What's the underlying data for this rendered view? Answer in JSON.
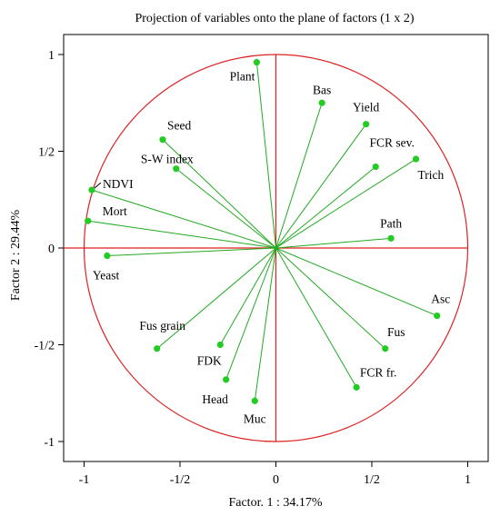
{
  "chart_data": {
    "type": "scatter",
    "title": "Projection of variables onto the plane of factors (1 x 2)",
    "xlabel": "Factor. 1 : 34.17%",
    "ylabel": "Factor 2 : 29.44%",
    "xlim": [
      -1.1,
      1.1
    ],
    "ylim": [
      -1.1,
      1.1
    ],
    "x_ticks": [
      {
        "value": -1,
        "label": "-1"
      },
      {
        "value": -0.5,
        "label": "-1/2"
      },
      {
        "value": 0,
        "label": "0"
      },
      {
        "value": 0.5,
        "label": "1/2"
      },
      {
        "value": 1,
        "label": "1"
      }
    ],
    "y_ticks": [
      {
        "value": 1,
        "label": "1"
      },
      {
        "value": 0.5,
        "label": "1/2"
      },
      {
        "value": 0,
        "label": "0"
      },
      {
        "value": -0.5,
        "label": "-1/2"
      },
      {
        "value": -1,
        "label": "-1"
      }
    ],
    "grid": false,
    "unit_circle": true,
    "colors": {
      "vector": "#22aa22",
      "point": "#22cc22",
      "circle": "#dd2222",
      "axis_lines": "#dd2222"
    },
    "points": [
      {
        "name": "Plant",
        "x": -0.1,
        "y": 0.96
      },
      {
        "name": "Bas",
        "x": 0.24,
        "y": 0.75
      },
      {
        "name": "Yield",
        "x": 0.47,
        "y": 0.64
      },
      {
        "name": "FCR sev.",
        "x": 0.52,
        "y": 0.42
      },
      {
        "name": "Trich",
        "x": 0.73,
        "y": 0.46
      },
      {
        "name": "Path",
        "x": 0.6,
        "y": 0.05
      },
      {
        "name": "Asc",
        "x": 0.84,
        "y": -0.35
      },
      {
        "name": "Fus",
        "x": 0.57,
        "y": -0.52
      },
      {
        "name": "FCR fr.",
        "x": 0.42,
        "y": -0.72
      },
      {
        "name": "Muc",
        "x": -0.11,
        "y": -0.79
      },
      {
        "name": "Head",
        "x": -0.26,
        "y": -0.68
      },
      {
        "name": "FDK",
        "x": -0.29,
        "y": -0.5
      },
      {
        "name": "Fus grain",
        "x": -0.62,
        "y": -0.52
      },
      {
        "name": "Yeast",
        "x": -0.88,
        "y": -0.04
      },
      {
        "name": "Mort",
        "x": -0.98,
        "y": 0.14
      },
      {
        "name": "NDVI",
        "x": -0.96,
        "y": 0.3
      },
      {
        "name": "S-W index",
        "x": -0.52,
        "y": 0.41
      },
      {
        "name": "Seed",
        "x": -0.59,
        "y": 0.56
      }
    ]
  }
}
